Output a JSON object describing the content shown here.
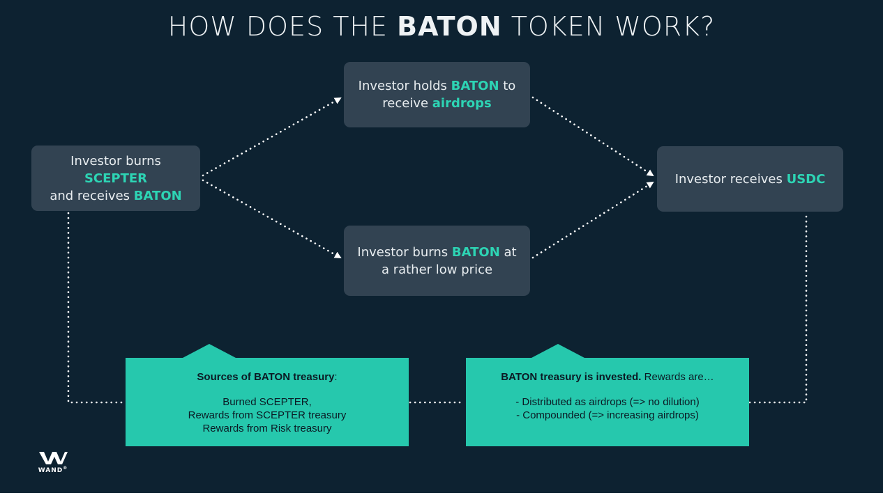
{
  "title": {
    "prefix": "HOW DOES THE",
    "bold": "BATON",
    "suffix": "TOKEN WORK?"
  },
  "nodes": {
    "burn_scepter": {
      "t1": "Investor burns ",
      "h1": "SCEPTER",
      "t2": "and receives ",
      "h2": "BATON"
    },
    "hold_baton": {
      "t1": "Investor holds ",
      "h1": "BATON",
      "t1b": " to",
      "t2": "receive ",
      "h2": "airdrops"
    },
    "burn_baton": {
      "t1": "Investor burns ",
      "h1": "BATON",
      "t1b": " at",
      "t2": "a rather low price"
    },
    "receive_usdc": {
      "t1": "Investor receives ",
      "h1": "USDC"
    }
  },
  "panels": {
    "sources": {
      "heading_bold": "Sources of BATON treasury",
      "heading_rest": ":",
      "lines": [
        "Burned SCEPTER,",
        "Rewards from SCEPTER treasury",
        "Rewards from Risk treasury"
      ]
    },
    "invested": {
      "heading_bold": "BATON treasury is invested.",
      "heading_rest": " Rewards are…",
      "lines": [
        "- Distributed as airdrops (=> no dilution)",
        "- Compounded (=> increasing airdrops)"
      ]
    }
  },
  "logo": {
    "word": "WAND",
    "mark": "®"
  },
  "colors": {
    "background": "#0d2231",
    "node": "#324352",
    "accent": "#2dd4b4",
    "panel": "#26c8ad",
    "dots": "#ffffff"
  }
}
